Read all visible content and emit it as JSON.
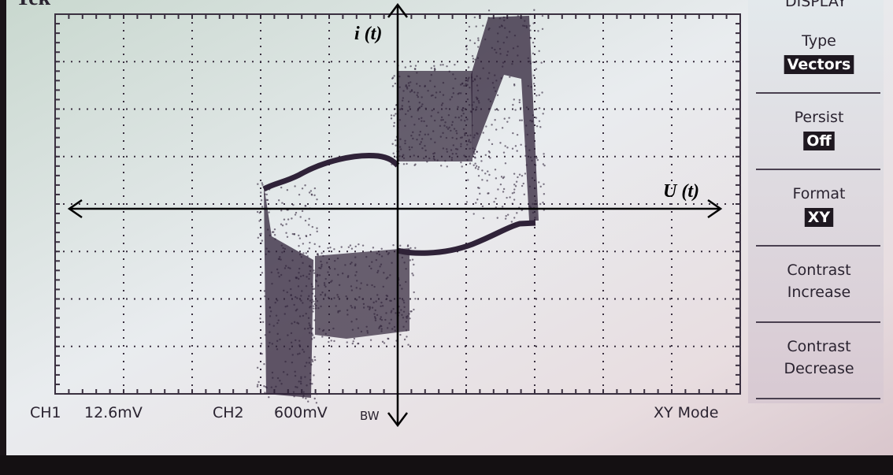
{
  "header": {
    "brand": "Tek",
    "menu_title": "DISPLAY"
  },
  "menu": [
    {
      "label": "Type",
      "value": "Vectors"
    },
    {
      "label": "Persist",
      "value": "Off"
    },
    {
      "label": "Format",
      "value": "XY"
    },
    {
      "label": "Contrast",
      "value": "Increase"
    },
    {
      "label": "Contrast",
      "value": "Decrease"
    }
  ],
  "status": {
    "ch1": "CH1",
    "ch1_scale": "12.6mV",
    "ch2": "CH2",
    "ch2_scale": "600mV",
    "bw": "BW",
    "mode": "XY Mode"
  },
  "axes": {
    "y_label": "i (t)",
    "x_label": "U (t)"
  }
}
